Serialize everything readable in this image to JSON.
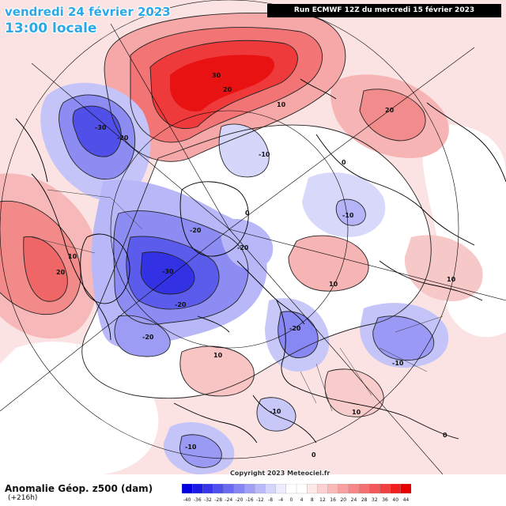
{
  "header": {
    "date": "vendredi 24 février 2023",
    "time": "13:00 locale",
    "run": "Run ECMWF 12Z du mercredi 15 février 2023"
  },
  "footer": {
    "variable": "Anomalie Géop. z500 (dam)",
    "lead": "(+216h)",
    "copyright": "Copyright 2023 Meteociel.fr"
  },
  "legend": {
    "ticks": [
      "-40",
      "-36",
      "-32",
      "-28",
      "-24",
      "-20",
      "-16",
      "-12",
      "-8",
      "-4",
      "0",
      "4",
      "8",
      "12",
      "16",
      "20",
      "24",
      "28",
      "32",
      "36",
      "40",
      "44"
    ],
    "colors": [
      "#0000e0",
      "#1a1ae6",
      "#3535ea",
      "#5050ee",
      "#6b6bf2",
      "#8585f4",
      "#a0a0f7",
      "#babafa",
      "#d4d4fc",
      "#ececfe",
      "#ffffff",
      "#ffffff",
      "#fde8e8",
      "#fcd0d0",
      "#fab8b8",
      "#f8a0a0",
      "#f68888",
      "#f47070",
      "#f25858",
      "#f04040",
      "#ee2020",
      "#e60000"
    ]
  },
  "map": {
    "anomalies": [
      {
        "name": "greenland-sea-high",
        "value": 30,
        "color": "#f04040",
        "labels": [
          "30",
          "20",
          "10"
        ]
      },
      {
        "name": "alaska-low",
        "value": -30,
        "color": "#6a6af0",
        "labels": [
          "-30",
          "-20"
        ]
      },
      {
        "name": "north-america-high",
        "value": 20,
        "color": "#f88a8a",
        "labels": [
          "20",
          "10"
        ]
      },
      {
        "name": "canada-low",
        "value": -30,
        "color": "#5c5cec",
        "labels": [
          "-30",
          "-20",
          "-20",
          "-20",
          "-20"
        ]
      },
      {
        "name": "siberia-high",
        "value": 20,
        "color": "#f6a0a0",
        "labels": [
          "20"
        ]
      },
      {
        "name": "east-siberia-low",
        "value": -10,
        "color": "#c8c8f8",
        "labels": [
          "-10"
        ]
      },
      {
        "name": "central-asia-high",
        "value": 10,
        "color": "#f8b0b0",
        "labels": [
          "10",
          "10"
        ]
      },
      {
        "name": "scandinavia-low",
        "value": -20,
        "color": "#8888f4",
        "labels": [
          "-20"
        ]
      },
      {
        "name": "russia-low",
        "value": -10,
        "color": "#9a9af6",
        "labels": [
          "-10"
        ]
      },
      {
        "name": "mediterranean-low",
        "value": -10,
        "color": "#a8a8f6",
        "labels": [
          "-10"
        ]
      },
      {
        "name": "atlantic-low",
        "value": -10,
        "color": "#9a9af4",
        "labels": [
          "-10"
        ]
      },
      {
        "name": "north-atlantic-low",
        "value": -10,
        "color": "#b8b8f8",
        "labels": [
          "-10"
        ]
      },
      {
        "name": "atlantic-high",
        "value": 10,
        "color": "#fbd0d0",
        "labels": [
          "10",
          "10"
        ]
      },
      {
        "name": "zero-line",
        "value": 0,
        "color": "#ffffff",
        "labels": [
          "0",
          "0",
          "0",
          "0"
        ]
      }
    ]
  }
}
